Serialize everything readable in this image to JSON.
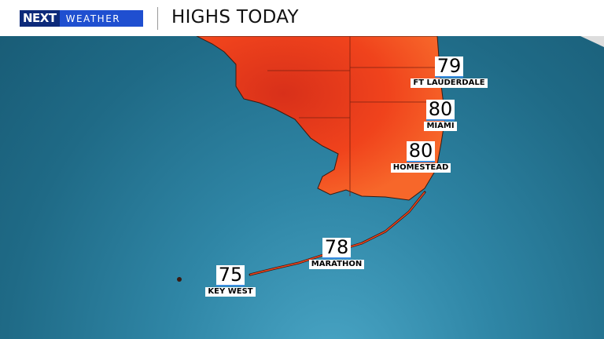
{
  "header": {
    "logo_next": "NEXT",
    "logo_weather": "WEATHER",
    "title": "HIGHS TODAY"
  },
  "colors": {
    "land_hot": "#f0431c",
    "land_warm": "#f45a24",
    "ocean": "#2a7d9c",
    "logo_blue": "#1f4fd0",
    "underline": "#3a8de0"
  },
  "cities": [
    {
      "name": "FT LAUDERDALE",
      "temp": "79"
    },
    {
      "name": "MIAMI",
      "temp": "80"
    },
    {
      "name": "HOMESTEAD",
      "temp": "80"
    },
    {
      "name": "MARATHON",
      "temp": "78"
    },
    {
      "name": "KEY WEST",
      "temp": "75"
    }
  ]
}
